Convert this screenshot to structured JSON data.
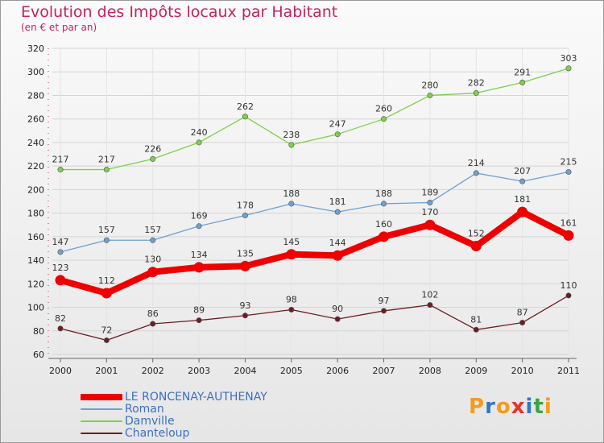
{
  "chart_data": {
    "type": "line",
    "title": "Evolution des Impôts locaux par Habitant",
    "subtitle": "(en € et par an)",
    "x": [
      "2000",
      "2001",
      "2002",
      "2003",
      "2004",
      "2005",
      "2006",
      "2007",
      "2008",
      "2009",
      "2010",
      "2011"
    ],
    "ylim": [
      60,
      320
    ],
    "yticks": [
      60,
      80,
      100,
      120,
      140,
      160,
      180,
      200,
      220,
      240,
      260,
      280,
      300,
      320
    ],
    "grid": true,
    "legend_position": "bottom-left",
    "series": [
      {
        "name": "Damville",
        "color": "#7fd04a",
        "values": [
          217,
          217,
          226,
          240,
          262,
          238,
          247,
          260,
          280,
          282,
          291,
          303
        ]
      },
      {
        "name": "Roman",
        "color": "#6fa0d0",
        "values": [
          147,
          157,
          157,
          169,
          178,
          188,
          181,
          188,
          189,
          214,
          207,
          215
        ]
      },
      {
        "name": "Chanteloup",
        "color": "#6b1e22",
        "values": [
          82,
          72,
          86,
          89,
          93,
          98,
          90,
          97,
          102,
          81,
          87,
          110
        ]
      },
      {
        "name": "LE RONCENAY-AUTHENAY",
        "color": "#ee0000",
        "values": [
          123,
          112,
          130,
          134,
          135,
          145,
          144,
          160,
          170,
          152,
          181,
          161
        ],
        "emphasis": true
      }
    ]
  },
  "legend_order": [
    "LE RONCENAY-AUTHENAY",
    "Roman",
    "Damville",
    "Chanteloup"
  ],
  "logo": {
    "letters": [
      "P",
      "r",
      "o",
      "x",
      "i",
      "t",
      "i"
    ],
    "colors": [
      "#f39c1e",
      "#2f78c4",
      "#f39c1e",
      "#e8322b",
      "#2f78c4",
      "#3aa346",
      "#f39c1e"
    ]
  }
}
